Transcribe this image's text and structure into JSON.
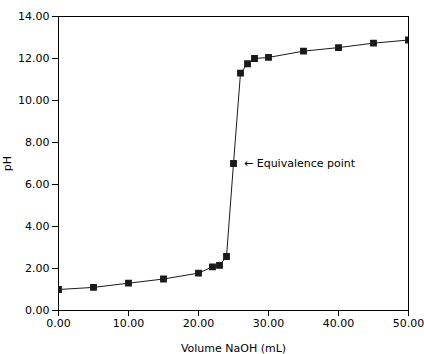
{
  "chart_data": {
    "type": "line",
    "x": [
      0,
      5,
      10,
      15,
      20,
      22,
      23,
      24,
      25,
      26,
      27,
      28,
      30,
      35,
      40,
      45,
      50
    ],
    "values": [
      1.0,
      1.1,
      1.3,
      1.5,
      1.78,
      2.08,
      2.15,
      2.57,
      7.0,
      11.3,
      11.75,
      12.0,
      12.05,
      12.35,
      12.52,
      12.73,
      12.88
    ],
    "xlabel": "Volume NaOH (mL)",
    "ylabel": "pH",
    "xlim": [
      0,
      50
    ],
    "ylim": [
      0,
      14
    ],
    "xticks": [
      {
        "value": 0,
        "label": "0.00"
      },
      {
        "value": 10,
        "label": "10.00"
      },
      {
        "value": 20,
        "label": "20.00"
      },
      {
        "value": 30,
        "label": "30.00"
      },
      {
        "value": 40,
        "label": "40.00"
      },
      {
        "value": 50,
        "label": "50.00"
      }
    ],
    "yticks": [
      {
        "value": 0,
        "label": "0.00"
      },
      {
        "value": 2,
        "label": "2.00"
      },
      {
        "value": 4,
        "label": "4.00"
      },
      {
        "value": 6,
        "label": "6.00"
      },
      {
        "value": 8,
        "label": "8.00"
      },
      {
        "value": 10,
        "label": "10.00"
      },
      {
        "value": 12,
        "label": "12.00"
      },
      {
        "value": 14,
        "label": "14.00"
      }
    ],
    "color": "#1a1a1a",
    "marker": "square",
    "grid": false,
    "annotations": [
      {
        "text": "← Equivalence point",
        "x": 26.5,
        "y": 7.0
      }
    ]
  }
}
